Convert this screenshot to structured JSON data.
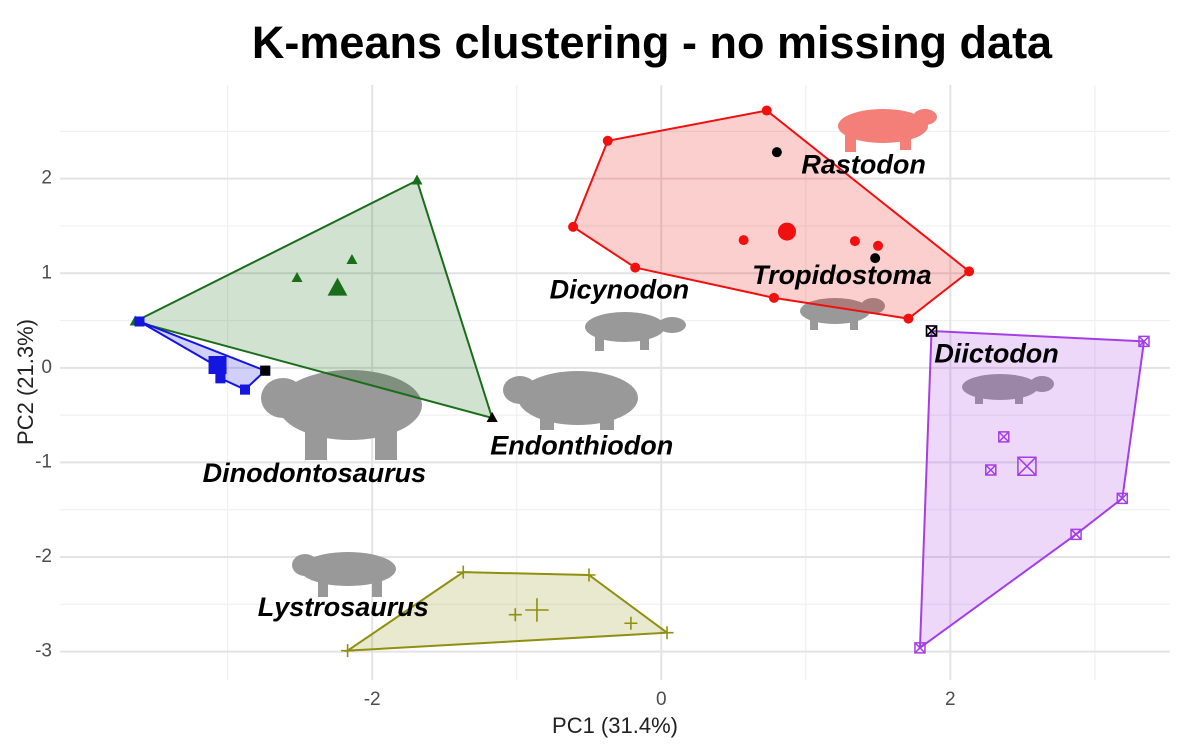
{
  "chart_data": {
    "type": "scatter",
    "title": "K-means clustering - no missing data",
    "x_label": "PC1 (31.4%)",
    "y_label": "PC2 (21.3%)",
    "xlim": [
      -4.16,
      3.52
    ],
    "ylim": [
      -3.3,
      2.99
    ],
    "xticks": [
      -2,
      0,
      2
    ],
    "yticks": [
      -3,
      -2,
      -1,
      0,
      1,
      2
    ],
    "x_minor_grid": [
      -3,
      -1,
      1,
      3
    ],
    "y_minor_grid": [
      -2.5,
      -1.5,
      -0.5,
      0.5,
      1.5,
      2.5
    ],
    "grid": true,
    "taxon_color": "#000000",
    "series": [
      {
        "color": "#1a6e1a",
        "shape": "triangle",
        "hull": [
          [
            -3.64,
            0.49
          ],
          [
            -1.69,
            1.98
          ],
          [
            -1.17,
            -0.53
          ]
        ],
        "points": [
          [
            -2.52,
            0.95
          ],
          [
            -2.14,
            1.14
          ]
        ],
        "centroid": [
          -2.24,
          0.84
        ],
        "taxa": [
          [
            -1.17,
            -0.53
          ]
        ]
      },
      {
        "color": "#1515e0",
        "shape": "square",
        "hull": [
          [
            -3.61,
            0.49
          ],
          [
            -2.74,
            -0.03
          ],
          [
            -2.88,
            -0.23
          ],
          [
            -3.05,
            -0.11
          ],
          [
            -3.09,
            0.03
          ]
        ],
        "points": [
          [
            -3.05,
            -0.11
          ],
          [
            -2.88,
            -0.23
          ]
        ],
        "centroid": [
          -3.07,
          0.03
        ],
        "taxa": [
          [
            -2.74,
            -0.03
          ]
        ]
      },
      {
        "color": "#f01010",
        "shape": "circle",
        "hull": [
          [
            -0.37,
            2.4
          ],
          [
            0.73,
            2.72
          ],
          [
            2.13,
            1.02
          ],
          [
            1.71,
            0.52
          ],
          [
            0.78,
            0.74
          ],
          [
            -0.18,
            1.06
          ],
          [
            -0.61,
            1.49
          ]
        ],
        "points": [
          [
            0.57,
            1.35
          ],
          [
            1.34,
            1.34
          ],
          [
            1.5,
            1.29
          ]
        ],
        "centroid": [
          0.87,
          1.44
        ],
        "taxa": [
          [
            0.8,
            2.28
          ],
          [
            1.48,
            1.16
          ]
        ]
      },
      {
        "color": "#a43ee6",
        "shape": "crossed-square",
        "hull": [
          [
            1.87,
            0.39
          ],
          [
            3.34,
            0.28
          ],
          [
            3.19,
            -1.38
          ],
          [
            2.87,
            -1.76
          ],
          [
            1.79,
            -2.96
          ]
        ],
        "points": [
          [
            2.37,
            -0.73
          ],
          [
            2.28,
            -1.08
          ]
        ],
        "centroid": [
          2.53,
          -1.04
        ],
        "taxa": [
          [
            1.87,
            0.39
          ]
        ]
      },
      {
        "color": "#8f8f10",
        "shape": "plus",
        "hull": [
          [
            -1.37,
            -2.16
          ],
          [
            -0.5,
            -2.19
          ],
          [
            0.04,
            -2.8
          ],
          [
            -2.17,
            -2.99
          ]
        ],
        "points": [
          [
            -1.01,
            -2.61
          ],
          [
            -0.21,
            -2.7
          ]
        ],
        "centroid": [
          -0.86,
          -2.56
        ],
        "taxa": []
      }
    ],
    "annotations": [
      {
        "text": "Rastodon",
        "x": 1.4,
        "y": 2.13
      },
      {
        "text": "Tropidostoma",
        "x": 1.25,
        "y": 0.96
      },
      {
        "text": "Dicynodon",
        "x": -0.29,
        "y": 0.81
      },
      {
        "text": "Diictodon",
        "x": 2.32,
        "y": 0.13
      },
      {
        "text": "Endonthiodon",
        "x": -0.55,
        "y": -0.84
      },
      {
        "text": "Dinodontosaurus",
        "x": -2.4,
        "y": -1.13
      },
      {
        "text": "Lystrosaurus",
        "x": -2.2,
        "y": -2.55
      }
    ]
  }
}
